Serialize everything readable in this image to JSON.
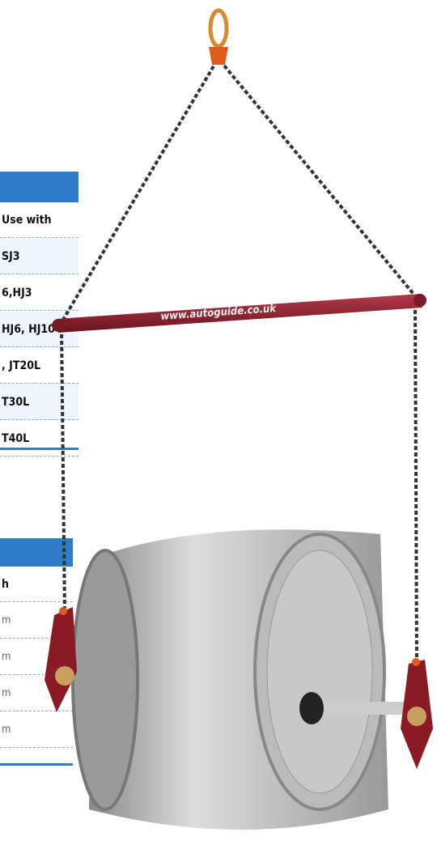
{
  "table_1": {
    "header": "Use with",
    "rows": [
      "SJ3",
      "6,HJ3",
      "HJ6, HJ10",
      ", JT20L",
      "T30L",
      "T40L"
    ]
  },
  "table_2": {
    "header": "h",
    "rows": [
      "m",
      "m",
      "m",
      "m"
    ]
  },
  "spreader_bar": {
    "label": "www.autoguide.co.uk"
  }
}
